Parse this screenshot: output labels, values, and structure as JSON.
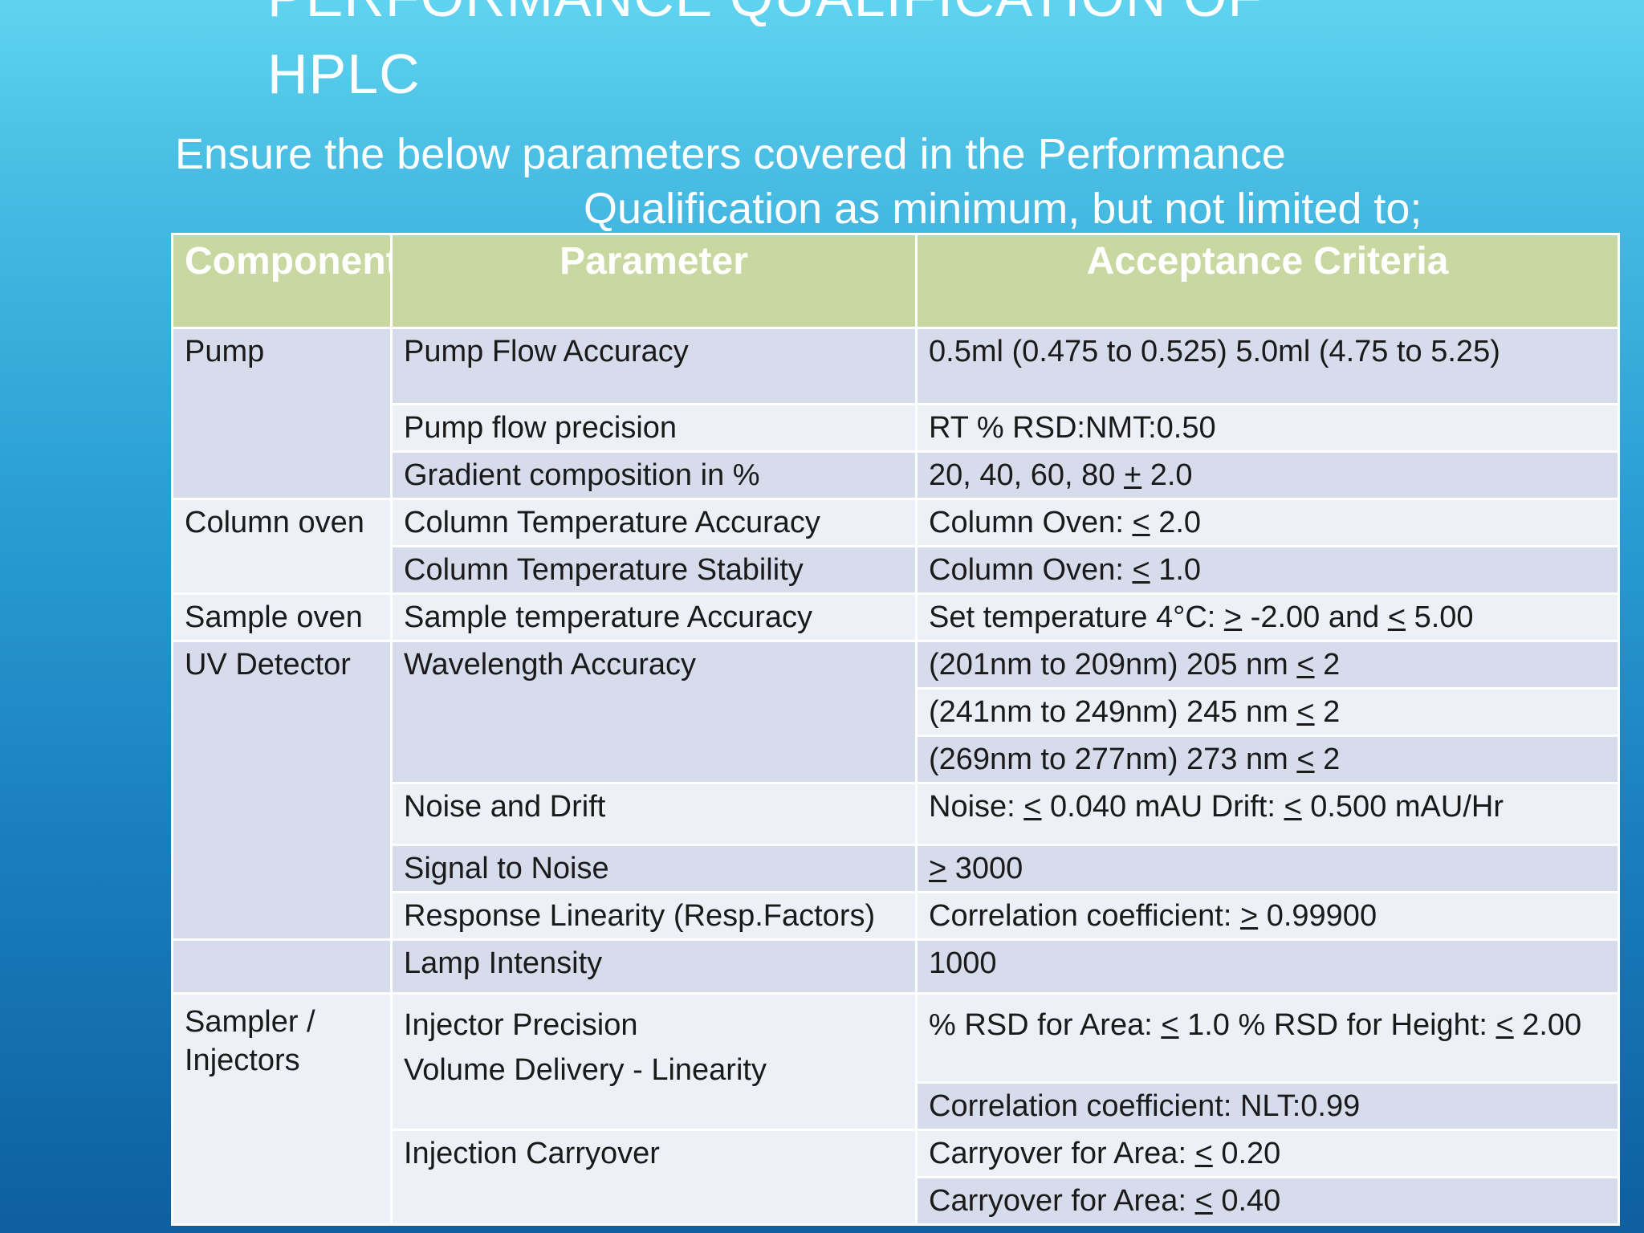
{
  "slide": {
    "title_line1": "PERFORMANCE QUALIFICATION OF",
    "title_line2": "HPLC",
    "intro_line1": "Ensure the below parameters covered in the Performance",
    "intro_line2": "Qualification as  minimum, but not limited to;"
  },
  "table": {
    "headers": {
      "component": "Component",
      "parameter": "Parameter",
      "acceptance": "Acceptance Criteria"
    },
    "components": {
      "pump": "Pump",
      "column_oven": "Column oven",
      "sample_oven": "Sample oven",
      "uv_detector": "UV Detector",
      "sampler": "Sampler / Injectors"
    },
    "rows": {
      "pump_flow_accuracy": {
        "parameter": "Pump Flow Accuracy",
        "criteria": "0.5ml (0.475 to 0.525) 5.0ml (4.75 to 5.25)"
      },
      "pump_flow_precision": {
        "parameter": "Pump flow precision",
        "criteria": "RT % RSD:NMT:0.50"
      },
      "gradient_composition": {
        "parameter": "Gradient composition in %",
        "criteria_pre": "20, 40, 60, 80 ",
        "criteria_symbol": "+",
        "criteria_post": " 2.0"
      },
      "column_temp_accuracy": {
        "parameter": "Column Temperature Accuracy",
        "criteria_pre": "Column Oven: ",
        "criteria_symbol": "<",
        "criteria_post": " 2.0"
      },
      "column_temp_stability": {
        "parameter": "Column Temperature Stability",
        "criteria_pre": "Column Oven: ",
        "criteria_symbol": "<",
        "criteria_post": " 1.0"
      },
      "sample_temp_accuracy": {
        "parameter": "Sample temperature Accuracy",
        "criteria_pre": "Set temperature 4°C: ",
        "criteria_symbol1": ">",
        "criteria_mid": " -2.00 and ",
        "criteria_symbol2": "<",
        "criteria_post": " 5.00"
      },
      "wavelength_accuracy": {
        "parameter": "Wavelength Accuracy",
        "criteria": [
          {
            "pre": "(201nm to 209nm) 205 nm ",
            "symbol": "<",
            "post": "  2"
          },
          {
            "pre": "(241nm to 249nm) 245 nm ",
            "symbol": "<",
            "post": "  2"
          },
          {
            "pre": "(269nm to 277nm) 273 nm ",
            "symbol": "<",
            "post": "  2"
          }
        ]
      },
      "noise_drift": {
        "parameter": "Noise and Drift",
        "criteria_pre": "Noise: ",
        "criteria_symbol1": "<",
        "criteria_mid": " 0.040 mAU Drift: ",
        "criteria_symbol2": "<",
        "criteria_post": " 0.500 mAU/Hr"
      },
      "signal_noise": {
        "parameter": "Signal to Noise",
        "criteria_symbol": ">",
        "criteria_post": " 3000"
      },
      "response_linearity": {
        "parameter": "Response Linearity (Resp.Factors)",
        "criteria_pre": "Correlation coefficient: ",
        "criteria_symbol": ">",
        "criteria_post": "  0.99900"
      },
      "lamp_intensity": {
        "parameter": "Lamp Intensity",
        "criteria": "1000"
      },
      "injector_precision": {
        "parameter_line1": "Injector Precision",
        "parameter_line2": "Volume Delivery - Linearity",
        "criteria_pre": "% RSD for Area: ",
        "criteria_symbol1": "<",
        "criteria_mid": " 1.0 % RSD for Height: ",
        "criteria_symbol2": "<",
        "criteria_post": " 2.00"
      },
      "volume_delivery": {
        "criteria": "Correlation coefficient: NLT:0.99"
      },
      "injection_carryover": {
        "parameter": "Injection Carryover",
        "criteria": [
          {
            "pre": "Carryover for Area: ",
            "symbol": "<",
            "post": "  0.20"
          },
          {
            "pre": "Carryover for Area: ",
            "symbol": "<",
            "post": "  0.40"
          }
        ]
      }
    }
  }
}
